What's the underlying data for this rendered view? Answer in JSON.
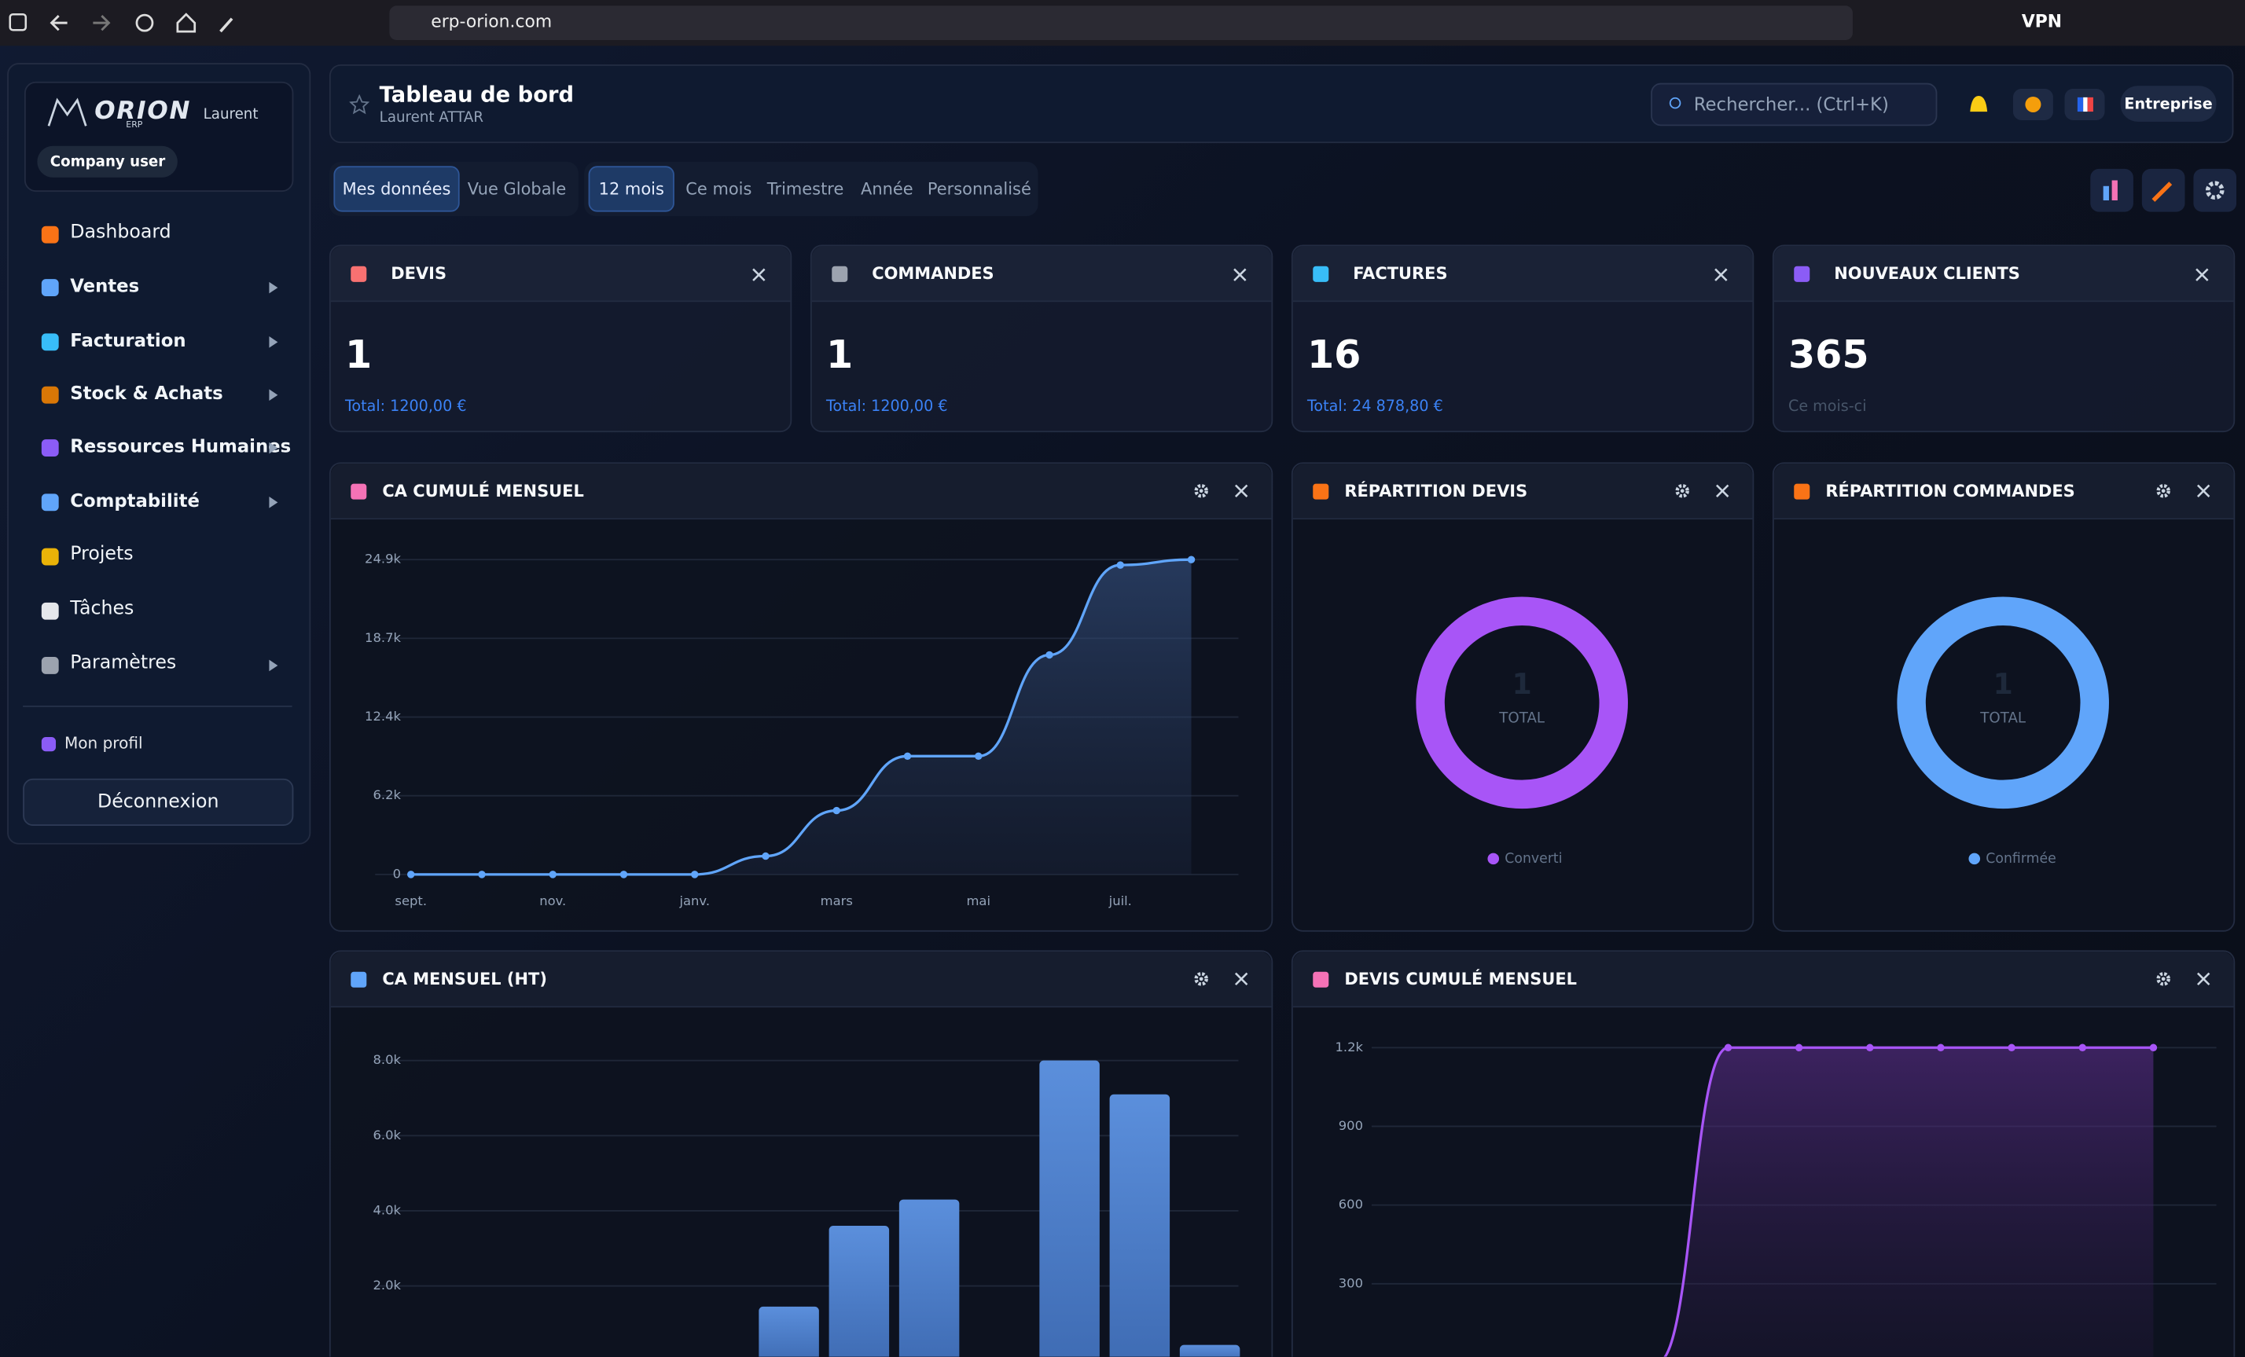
{
  "browser": {
    "url": "erp-orion.com",
    "vpn": "VPN"
  },
  "sidebar": {
    "logo": "ORION",
    "logo_sub": "ERP",
    "user": "Laurent",
    "role": "Company user",
    "nav": [
      {
        "label": "Dashboard",
        "submenu": false,
        "color": "#f97316"
      },
      {
        "label": "Ventes",
        "submenu": true,
        "color": "#60a5fa"
      },
      {
        "label": "Facturation",
        "submenu": true,
        "color": "#38bdf8"
      },
      {
        "label": "Stock & Achats",
        "submenu": true,
        "color": "#d97706"
      },
      {
        "label": "Ressources Humaines",
        "submenu": true,
        "color": "#8b5cf6"
      },
      {
        "label": "Comptabilité",
        "submenu": true,
        "color": "#60a5fa"
      },
      {
        "label": "Projets",
        "submenu": false,
        "color": "#eab308"
      },
      {
        "label": "Tâches",
        "submenu": false,
        "color": "#e5e7eb"
      },
      {
        "label": "Paramètres",
        "submenu": true,
        "color": "#9ca3af"
      }
    ],
    "profile": "Mon profil",
    "logout": "Déconnexion"
  },
  "header": {
    "title": "Tableau de bord",
    "subtitle": "Laurent ATTAR",
    "search": "Rechercher... (Ctrl+K)",
    "company": "Entreprise"
  },
  "filters": {
    "scope": [
      "Mes données",
      "Vue Globale"
    ],
    "scope_active": 0,
    "periods": [
      "12 mois",
      "Ce mois",
      "Trimestre",
      "Année",
      "Personnalisé"
    ],
    "period_active": 0
  },
  "kpis": [
    {
      "title": "DEVIS",
      "value": 1,
      "note": "Total: 1200,00 €",
      "color": "#f87171"
    },
    {
      "title": "COMMANDES",
      "value": 1,
      "note": "Total: 1200,00 €",
      "color": "#9ca3af"
    },
    {
      "title": "FACTURES",
      "value": 16,
      "note": "Total: 24 878,80 €",
      "color": "#38bdf8"
    },
    {
      "title": "NOUVEAUX CLIENTS",
      "value": 365,
      "note": "Ce mois-ci",
      "color": "#8b5cf6"
    }
  ],
  "chart_data": [
    {
      "type": "line",
      "title": "CA CUMULÉ MENSUEL",
      "area": true,
      "color": "#60a5fa",
      "grid": true,
      "categories": [
        "sept.",
        null,
        "nov.",
        null,
        "janv.",
        null,
        "mars",
        null,
        "mai",
        null,
        "juil.",
        null
      ],
      "values": [
        0,
        0,
        0,
        0,
        0,
        1450,
        5050,
        9350,
        9350,
        17350,
        24450,
        24880
      ],
      "ylim": [
        0,
        24880
      ],
      "yticks": [
        0,
        {
          "value": 6220,
          "label": "6.2k"
        },
        {
          "value": 12440,
          "label": "12.4k"
        },
        {
          "value": 18660,
          "label": "18.7k"
        },
        {
          "value": 24880,
          "label": "24.9k"
        }
      ]
    },
    {
      "type": "donut",
      "title": "RÉPARTITION DEVIS",
      "total": 1,
      "total_label": "TOTAL",
      "series": [
        {
          "name": "Converti",
          "color": "#a855f7",
          "values": [
            1
          ]
        }
      ]
    },
    {
      "type": "donut",
      "title": "RÉPARTITION COMMANDES",
      "total": 1,
      "total_label": "TOTAL",
      "series": [
        {
          "name": "Confirmée",
          "color": "#60a5fa",
          "values": [
            1
          ]
        }
      ]
    },
    {
      "type": "bar",
      "title": "CA MENSUEL (HT)",
      "color": "#5b8fdc",
      "grid": true,
      "values": [
        0,
        0,
        0,
        0,
        0,
        1450,
        3600,
        4300,
        0,
        8000,
        7100,
        430
      ],
      "ylim": [
        0,
        8000
      ],
      "yticks": [
        {
          "value": 2000,
          "label": "2.0k"
        },
        {
          "value": 4000,
          "label": "4.0k"
        },
        {
          "value": 6000,
          "label": "6.0k"
        },
        {
          "value": 8000,
          "label": "8.0k"
        }
      ]
    },
    {
      "type": "line",
      "title": "DEVIS CUMULÉ MENSUEL",
      "area": true,
      "color": "#a855f7",
      "grid": true,
      "values": [
        0,
        0,
        0,
        0,
        0,
        1200,
        1200,
        1200,
        1200,
        1200,
        1200,
        1200
      ],
      "ylim": [
        0,
        1200
      ],
      "yticks": [
        300,
        600,
        900,
        {
          "value": 1200,
          "label": "1.2k"
        }
      ]
    }
  ]
}
